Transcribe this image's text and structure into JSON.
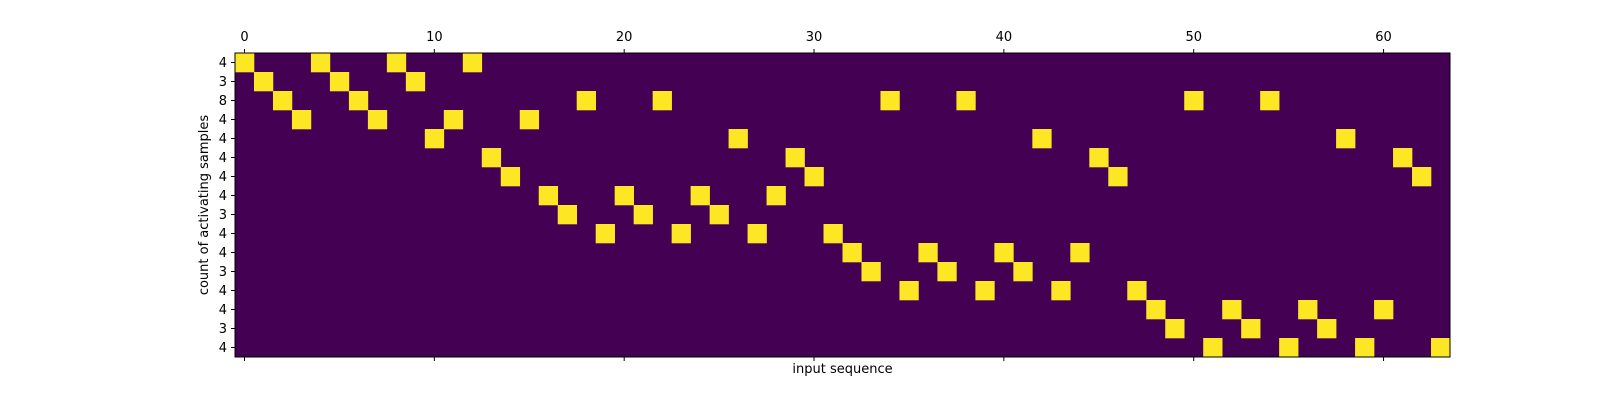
{
  "chart_data": {
    "type": "heatmap",
    "title": "",
    "xlabel": "input sequence",
    "ylabel": "count of activating samples",
    "x_axis_position": "top",
    "x_tick_values": [
      0,
      10,
      20,
      30,
      40,
      50,
      60
    ],
    "x_tick_labels": [
      "0",
      "10",
      "20",
      "30",
      "40",
      "50",
      "60"
    ],
    "xlim": [
      -0.5,
      63.5
    ],
    "n_columns": 64,
    "n_rows": 16,
    "row_labels": [
      "4",
      "3",
      "8",
      "4",
      "4",
      "4",
      "4",
      "4",
      "3",
      "4",
      "4",
      "3",
      "4",
      "4",
      "3",
      "4"
    ],
    "active_cells": [
      {
        "row": 0,
        "cols": [
          0,
          4,
          8,
          12
        ]
      },
      {
        "row": 1,
        "cols": [
          1,
          5,
          9
        ]
      },
      {
        "row": 2,
        "cols": [
          2,
          6,
          18,
          22,
          34,
          38,
          50,
          54
        ]
      },
      {
        "row": 3,
        "cols": [
          3,
          7,
          11,
          15
        ]
      },
      {
        "row": 4,
        "cols": [
          10,
          26,
          42,
          58
        ]
      },
      {
        "row": 5,
        "cols": [
          13,
          29,
          45,
          61
        ]
      },
      {
        "row": 6,
        "cols": [
          14,
          30,
          46,
          62
        ]
      },
      {
        "row": 7,
        "cols": [
          16,
          20,
          24,
          28
        ]
      },
      {
        "row": 8,
        "cols": [
          17,
          21,
          25
        ]
      },
      {
        "row": 9,
        "cols": [
          19,
          23,
          27,
          31
        ]
      },
      {
        "row": 10,
        "cols": [
          32,
          36,
          40,
          44
        ]
      },
      {
        "row": 11,
        "cols": [
          33,
          37,
          41
        ]
      },
      {
        "row": 12,
        "cols": [
          35,
          39,
          43,
          47
        ]
      },
      {
        "row": 13,
        "cols": [
          48,
          52,
          56,
          60
        ]
      },
      {
        "row": 14,
        "cols": [
          49,
          53,
          57
        ]
      },
      {
        "row": 15,
        "cols": [
          51,
          55,
          59,
          63
        ]
      }
    ],
    "colors": {
      "inactive": "#440154",
      "active": "#fde725"
    },
    "grid": false,
    "legend": "none"
  }
}
